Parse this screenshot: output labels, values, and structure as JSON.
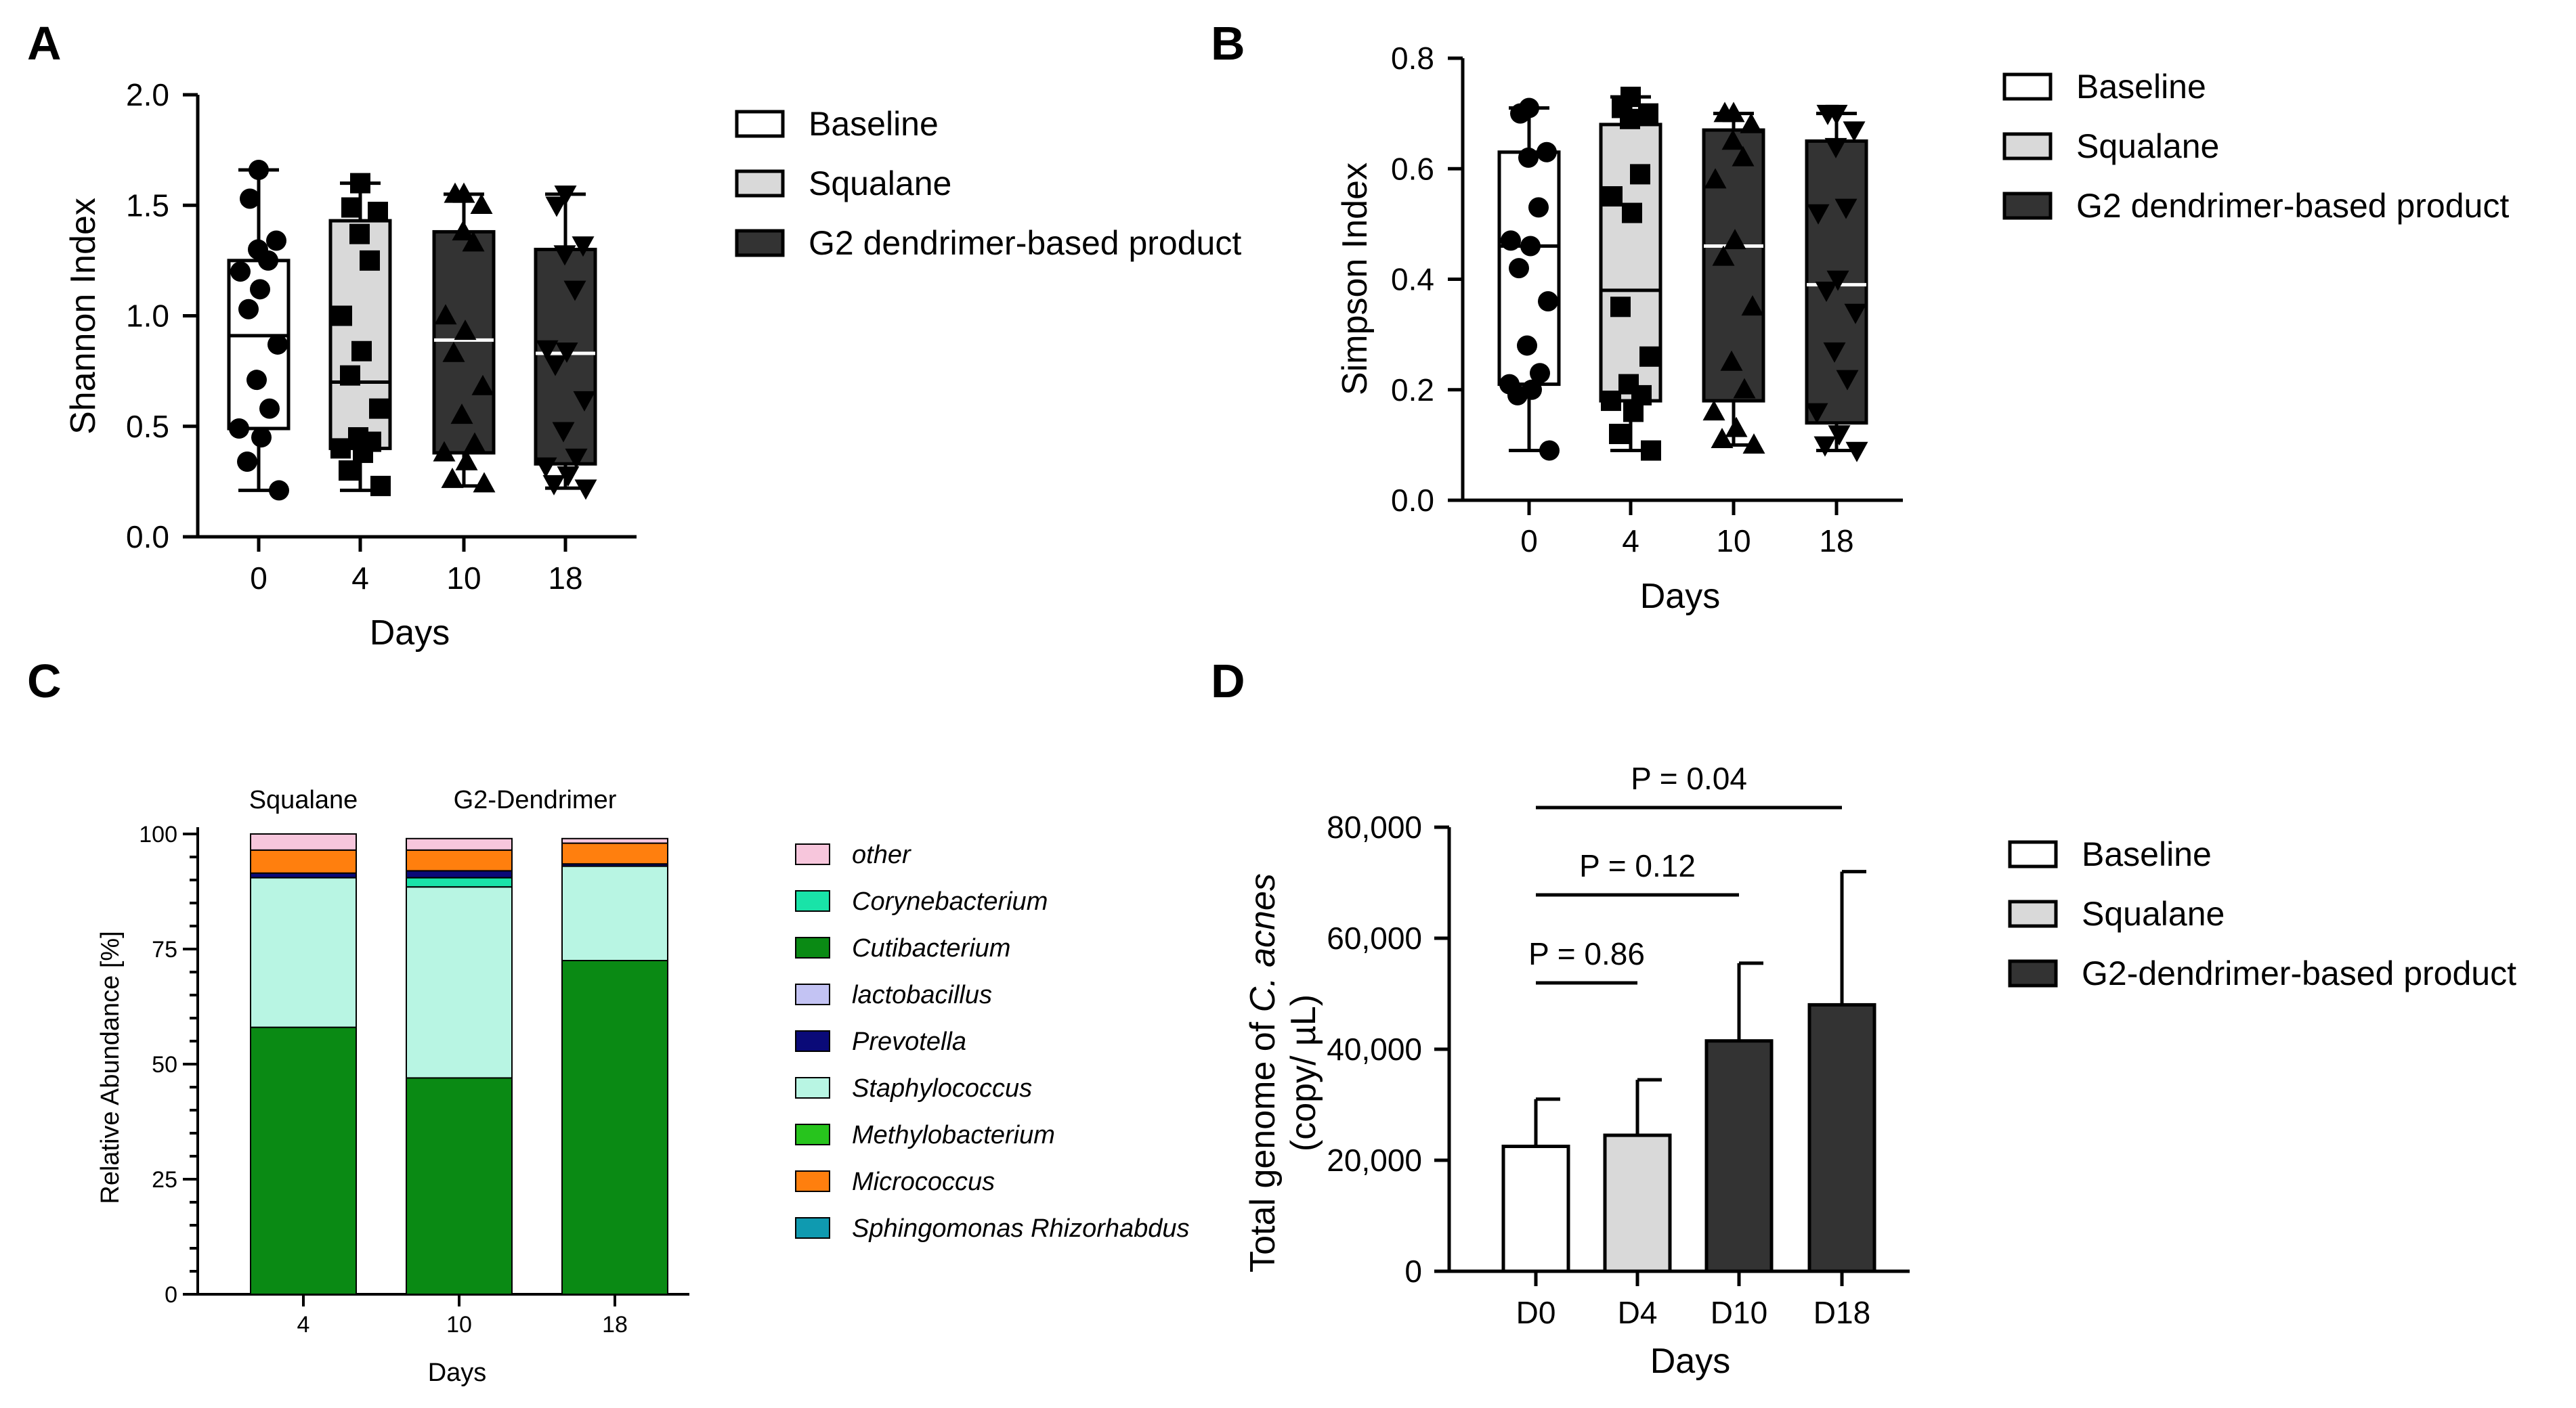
{
  "colors": {
    "baseline": "#ffffff",
    "squalane": "#d9d9d9",
    "g2": "#333333",
    "other": "#f7c6dc",
    "corynebacterium": "#19e3a8",
    "cutibacterium": "#0a8a14",
    "lactobacillus": "#c3c3f3",
    "prevotella": "#0a0a78",
    "staphylococcus": "#b8f5e3",
    "methylobacterium": "#27c41d",
    "micrococcus": "#ff7f0e",
    "sphingomonas": "#0f9ab0"
  },
  "chart_data": [
    {
      "panel": "A",
      "type": "box",
      "ylabel": "Shannon Index",
      "xlabel": "Days",
      "categories": [
        "0",
        "4",
        "10",
        "18"
      ],
      "ylim": [
        0,
        2.0
      ],
      "yticks": [
        "0.0",
        "0.5",
        "1.0",
        "1.5",
        "2.0"
      ],
      "legend": [
        "Baseline",
        "Squalane",
        "G2 dendrimer-based product"
      ],
      "legend_placement": "right",
      "markers": [
        "circle",
        "square",
        "triangle-up",
        "triangle-down"
      ],
      "boxes": [
        {
          "group": "Baseline",
          "min": 0.21,
          "q1": 0.49,
          "median": 0.91,
          "q3": 1.25,
          "max": 1.66
        },
        {
          "group": "Squalane",
          "min": 0.21,
          "q1": 0.4,
          "median": 0.7,
          "q3": 1.43,
          "max": 1.6
        },
        {
          "group": "G2 dendrimer-based product",
          "min": 0.23,
          "q1": 0.38,
          "median": 0.89,
          "q3": 1.38,
          "max": 1.55
        },
        {
          "group": "G2 dendrimer-based product",
          "min": 0.22,
          "q1": 0.33,
          "median": 0.83,
          "q3": 1.3,
          "max": 1.55
        }
      ],
      "points": [
        [
          1.66,
          1.53,
          1.34,
          1.3,
          1.25,
          1.2,
          1.12,
          1.03,
          0.87,
          0.71,
          0.58,
          0.49,
          0.45,
          0.34,
          0.21
        ],
        [
          1.6,
          1.49,
          1.47,
          1.37,
          1.25,
          1.0,
          0.84,
          0.73,
          0.58,
          0.45,
          0.43,
          0.4,
          0.38,
          0.3,
          0.23
        ],
        [
          1.55,
          1.55,
          1.5,
          1.38,
          1.33,
          1.0,
          0.93,
          0.83,
          0.68,
          0.55,
          0.42,
          0.38,
          0.34,
          0.26,
          0.24
        ],
        [
          1.55,
          1.5,
          1.32,
          1.28,
          1.12,
          0.85,
          0.84,
          0.78,
          0.62,
          0.48,
          0.36,
          0.32,
          0.28,
          0.24,
          0.22
        ]
      ]
    },
    {
      "panel": "B",
      "type": "box",
      "ylabel": "Simpson Index",
      "xlabel": "Days",
      "categories": [
        "0",
        "4",
        "10",
        "18"
      ],
      "ylim": [
        0,
        0.8
      ],
      "yticks": [
        "0.0",
        "0.2",
        "0.4",
        "0.6",
        "0.8"
      ],
      "legend": [
        "Baseline",
        "Squalane",
        "G2 dendrimer-based product"
      ],
      "legend_placement": "right",
      "markers": [
        "circle",
        "square",
        "triangle-up",
        "triangle-down"
      ],
      "boxes": [
        {
          "group": "Baseline",
          "min": 0.09,
          "q1": 0.21,
          "median": 0.46,
          "q3": 0.63,
          "max": 0.71
        },
        {
          "group": "Squalane",
          "min": 0.09,
          "q1": 0.18,
          "median": 0.38,
          "q3": 0.68,
          "max": 0.73
        },
        {
          "group": "G2 dendrimer-based product",
          "min": 0.1,
          "q1": 0.18,
          "median": 0.46,
          "q3": 0.67,
          "max": 0.7
        },
        {
          "group": "G2 dendrimer-based product",
          "min": 0.09,
          "q1": 0.14,
          "median": 0.39,
          "q3": 0.65,
          "max": 0.7
        }
      ],
      "points": [
        [
          0.71,
          0.7,
          0.63,
          0.62,
          0.53,
          0.47,
          0.46,
          0.42,
          0.36,
          0.28,
          0.23,
          0.21,
          0.2,
          0.19,
          0.09
        ],
        [
          0.73,
          0.71,
          0.7,
          0.69,
          0.59,
          0.55,
          0.52,
          0.35,
          0.26,
          0.21,
          0.19,
          0.18,
          0.16,
          0.12,
          0.09
        ],
        [
          0.7,
          0.7,
          0.68,
          0.65,
          0.62,
          0.58,
          0.47,
          0.44,
          0.35,
          0.25,
          0.2,
          0.16,
          0.13,
          0.11,
          0.1
        ],
        [
          0.7,
          0.7,
          0.67,
          0.64,
          0.53,
          0.52,
          0.4,
          0.38,
          0.34,
          0.27,
          0.22,
          0.16,
          0.12,
          0.1,
          0.09
        ]
      ]
    },
    {
      "panel": "C",
      "type": "bar",
      "stacked": true,
      "ylabel": "Relative Abundance [%]",
      "xlabel": "Days",
      "categories": [
        "4",
        "10",
        "18"
      ],
      "group_labels": [
        "Squalane",
        "G2-Dendrimer"
      ],
      "ylim": [
        0,
        100
      ],
      "yticks": [
        "0",
        "25",
        "50",
        "75",
        "100"
      ],
      "legend_placement": "right",
      "series": [
        {
          "name": "Cutibacterium",
          "values": [
            58,
            47,
            72.5
          ]
        },
        {
          "name": "Staphylococcus",
          "values": [
            32.5,
            41.5,
            20.5
          ]
        },
        {
          "name": "Corynebacterium",
          "values": [
            0,
            2,
            0
          ]
        },
        {
          "name": "Prevotella",
          "values": [
            1,
            1.5,
            0.5
          ]
        },
        {
          "name": "Micrococcus",
          "values": [
            5,
            4.5,
            4.5
          ]
        },
        {
          "name": "other",
          "values": [
            3.5,
            2.5,
            1
          ]
        }
      ],
      "legend": [
        "other",
        "Corynebacterium",
        "Cutibacterium",
        "lactobacillus",
        "Prevotella",
        "Staphylococcus",
        "Methylobacterium",
        "Micrococcus",
        "Sphingomonas Rhizorhabdus"
      ]
    },
    {
      "panel": "D",
      "type": "bar",
      "ylabel_line1_prefix": "Total genome of ",
      "ylabel_line1_italic": "C. acnes",
      "ylabel_line2": "(copy/ µL)",
      "xlabel": "Days",
      "categories": [
        "D0",
        "D4",
        "D10",
        "D18"
      ],
      "values": [
        22500,
        24500,
        41500,
        48000
      ],
      "errors": [
        8500,
        10000,
        14000,
        24000
      ],
      "ylim": [
        0,
        80000
      ],
      "yticks": [
        "0",
        "20,000",
        "40,000",
        "60,000",
        "80,000"
      ],
      "legend": [
        "Baseline",
        "Squalane",
        "G2-dendrimer-based product"
      ],
      "legend_placement": "right",
      "annotations": [
        "P = 0.86",
        "P = 0.12",
        "P = 0.04"
      ]
    }
  ]
}
